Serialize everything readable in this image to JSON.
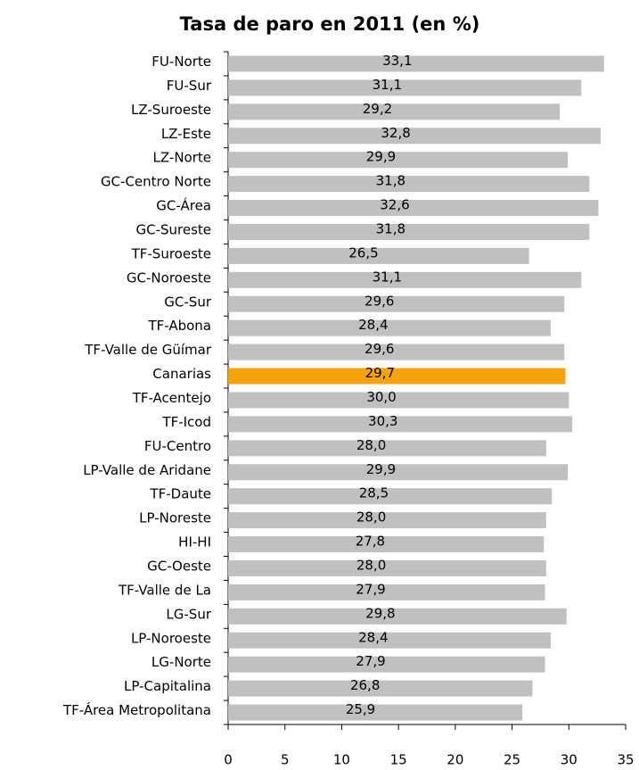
{
  "chart_data": {
    "type": "hbar",
    "title": "Tasa de paro en 2011 (en %)",
    "categories": [
      "FU-Norte",
      "FU-Sur",
      "LZ-Suroeste",
      "LZ-Este",
      "LZ-Norte",
      "GC-Centro Norte",
      "GC-Área",
      "GC-Sureste",
      "TF-Suroeste",
      "GC-Noroeste",
      "GC-Sur",
      "TF-Abona",
      "TF-Valle de Güímar",
      "Canarias",
      "TF-Acentejo",
      "TF-Icod",
      "FU-Centro",
      "LP-Valle de Aridane",
      "TF-Daute",
      "LP-Noreste",
      "HI-HI",
      "GC-Oeste",
      "TF-Valle de La",
      "LG-Sur",
      "LP-Noroeste",
      "LG-Norte",
      "LP-Capitalina",
      "TF-Área Metropolitana"
    ],
    "values": [
      33.1,
      31.1,
      29.2,
      32.8,
      29.9,
      31.8,
      32.6,
      31.8,
      26.5,
      31.1,
      29.6,
      28.4,
      29.6,
      29.7,
      30.0,
      30.3,
      28.0,
      29.9,
      28.5,
      28.0,
      27.8,
      28.0,
      27.9,
      29.8,
      28.4,
      27.9,
      26.8,
      25.9
    ],
    "value_labels": [
      "33,1",
      "31,1",
      "29,2",
      "32,8",
      "29,9",
      "31,8",
      "32,6",
      "31,8",
      "26,5",
      "31,1",
      "29,6",
      "28,4",
      "29,6",
      "29,7",
      "30,0",
      "30,3",
      "28,0",
      "29,9",
      "28,5",
      "28,0",
      "27,8",
      "28,0",
      "27,9",
      "29,8",
      "28,4",
      "27,9",
      "26,8",
      "25,9"
    ],
    "colors": [
      "#c0c0c0",
      "#c0c0c0",
      "#c0c0c0",
      "#c0c0c0",
      "#c0c0c0",
      "#c0c0c0",
      "#c0c0c0",
      "#c0c0c0",
      "#c0c0c0",
      "#c0c0c0",
      "#c0c0c0",
      "#c0c0c0",
      "#c0c0c0",
      "#f5a20c",
      "#c0c0c0",
      "#c0c0c0",
      "#c0c0c0",
      "#c0c0c0",
      "#c0c0c0",
      "#c0c0c0",
      "#c0c0c0",
      "#c0c0c0",
      "#c0c0c0",
      "#c0c0c0",
      "#c0c0c0",
      "#c0c0c0",
      "#c0c0c0",
      "#c0c0c0"
    ],
    "xlim": [
      0,
      35
    ],
    "xticks": [
      0,
      5,
      10,
      15,
      20,
      25,
      30,
      35
    ],
    "grid": false
  }
}
